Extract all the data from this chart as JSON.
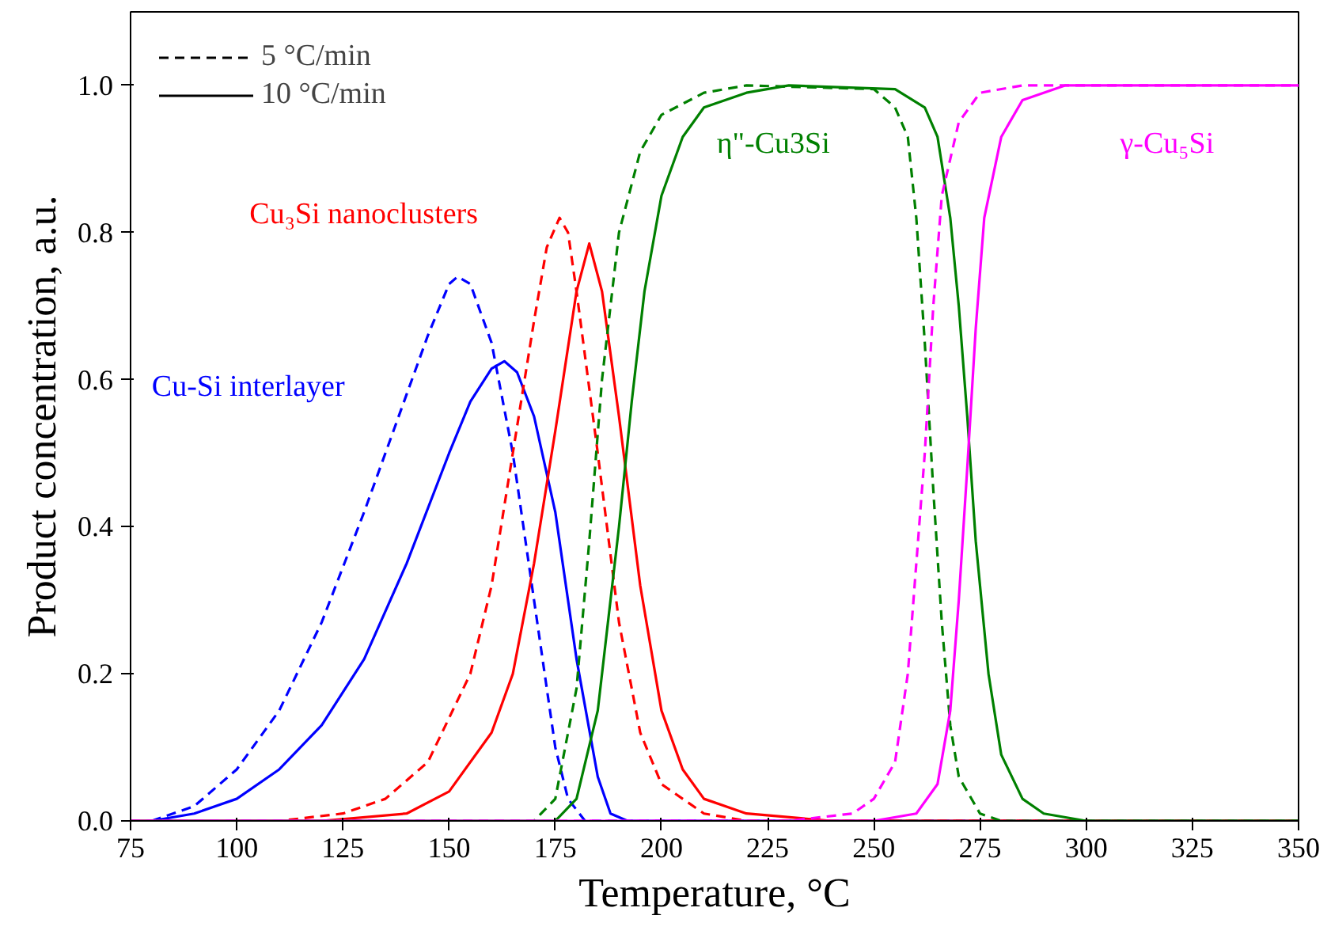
{
  "chart_data": {
    "type": "line",
    "xlabel": "Temperature, °C",
    "ylabel": "Product concentration, a.u.",
    "xlim": [
      75,
      350
    ],
    "xticks": [
      75,
      100,
      125,
      150,
      175,
      200,
      225,
      250,
      275,
      300,
      325,
      350
    ],
    "ylim": [
      0,
      1.1
    ],
    "yticks": [
      {
        "value": 0,
        "label": "0.0"
      },
      0.2,
      0.4,
      0.6,
      0.8,
      {
        "value": 1,
        "label": "1.0"
      }
    ],
    "grid": false,
    "legend": "top left",
    "marker": "none",
    "series": [
      {
        "name": "5 °C/min",
        "color": "#000000",
        "line_style": "dashed"
      },
      {
        "name": "10 °C/min",
        "color": "#000000",
        "line_style": "solid"
      },
      {
        "color": "#0000ff",
        "line_style": "dashed",
        "x": [
          80,
          90,
          100,
          110,
          120,
          130,
          140,
          145,
          150,
          152,
          155,
          160,
          165,
          170,
          175,
          178,
          182,
          350
        ],
        "values": [
          0,
          0.02,
          0.07,
          0.15,
          0.27,
          0.42,
          0.58,
          0.66,
          0.73,
          0.74,
          0.73,
          0.65,
          0.5,
          0.3,
          0.1,
          0.03,
          0,
          0
        ]
      },
      {
        "name": "Cu-Si interlayer",
        "color": "#0000ff",
        "line_style": "solid",
        "x": [
          80,
          90,
          100,
          110,
          120,
          130,
          140,
          150,
          155,
          160,
          163,
          166,
          170,
          175,
          180,
          185,
          188,
          192,
          350
        ],
        "values": [
          0,
          0.01,
          0.03,
          0.07,
          0.13,
          0.22,
          0.35,
          0.5,
          0.57,
          0.615,
          0.625,
          0.61,
          0.55,
          0.42,
          0.22,
          0.06,
          0.01,
          0,
          0
        ]
      },
      {
        "color": "#ff0000",
        "line_style": "dashed",
        "x": [
          75,
          110,
          125,
          135,
          145,
          155,
          160,
          165,
          170,
          173,
          176,
          178,
          180,
          185,
          190,
          195,
          200,
          210,
          220,
          350
        ],
        "values": [
          0,
          0,
          0.01,
          0.03,
          0.08,
          0.2,
          0.32,
          0.5,
          0.68,
          0.78,
          0.82,
          0.8,
          0.72,
          0.5,
          0.27,
          0.12,
          0.05,
          0.01,
          0,
          0
        ]
      },
      {
        "name": "Cu₃Si nanoclusters",
        "color": "#ff0000",
        "line_style": "solid",
        "x": [
          75,
          120,
          140,
          150,
          160,
          165,
          170,
          175,
          180,
          183,
          186,
          190,
          195,
          200,
          205,
          210,
          220,
          240,
          350
        ],
        "values": [
          0,
          0,
          0.01,
          0.04,
          0.12,
          0.2,
          0.35,
          0.53,
          0.72,
          0.785,
          0.72,
          0.55,
          0.32,
          0.15,
          0.07,
          0.03,
          0.01,
          0,
          0
        ]
      },
      {
        "color": "#008000",
        "line_style": "dashed",
        "x": [
          75,
          170,
          175,
          180,
          183,
          186,
          190,
          195,
          200,
          210,
          220,
          250,
          255,
          258,
          260,
          262,
          264,
          266,
          268,
          270,
          275,
          280,
          350
        ],
        "values": [
          0,
          0,
          0.03,
          0.18,
          0.38,
          0.6,
          0.8,
          0.91,
          0.96,
          0.99,
          1.0,
          0.995,
          0.97,
          0.93,
          0.82,
          0.65,
          0.45,
          0.27,
          0.13,
          0.06,
          0.01,
          0,
          0
        ]
      },
      {
        "name": "η\"-Cu3Si",
        "color": "#008000",
        "line_style": "solid",
        "x": [
          75,
          175,
          180,
          185,
          190,
          193,
          196,
          200,
          205,
          210,
          220,
          230,
          255,
          262,
          265,
          268,
          270,
          272,
          274,
          277,
          280,
          285,
          290,
          300,
          350
        ],
        "values": [
          0,
          0,
          0.03,
          0.15,
          0.4,
          0.57,
          0.72,
          0.85,
          0.93,
          0.97,
          0.99,
          1.0,
          0.995,
          0.97,
          0.93,
          0.82,
          0.7,
          0.55,
          0.38,
          0.2,
          0.09,
          0.03,
          0.01,
          0,
          0
        ]
      },
      {
        "color": "#ff00ff",
        "line_style": "dashed",
        "x": [
          75,
          230,
          245,
          250,
          255,
          258,
          260,
          262,
          264,
          266,
          270,
          275,
          285,
          350
        ],
        "values": [
          0,
          0,
          0.01,
          0.03,
          0.08,
          0.2,
          0.35,
          0.5,
          0.7,
          0.85,
          0.95,
          0.99,
          1.0,
          1.0
        ]
      },
      {
        "name": "γ-Cu₅Si",
        "color": "#ff00ff",
        "line_style": "solid",
        "x": [
          75,
          250,
          260,
          265,
          268,
          270,
          272,
          274,
          276,
          280,
          285,
          295,
          350
        ],
        "values": [
          0,
          0,
          0.01,
          0.05,
          0.15,
          0.3,
          0.48,
          0.67,
          0.82,
          0.93,
          0.98,
          1.0,
          1.0
        ]
      }
    ]
  }
}
